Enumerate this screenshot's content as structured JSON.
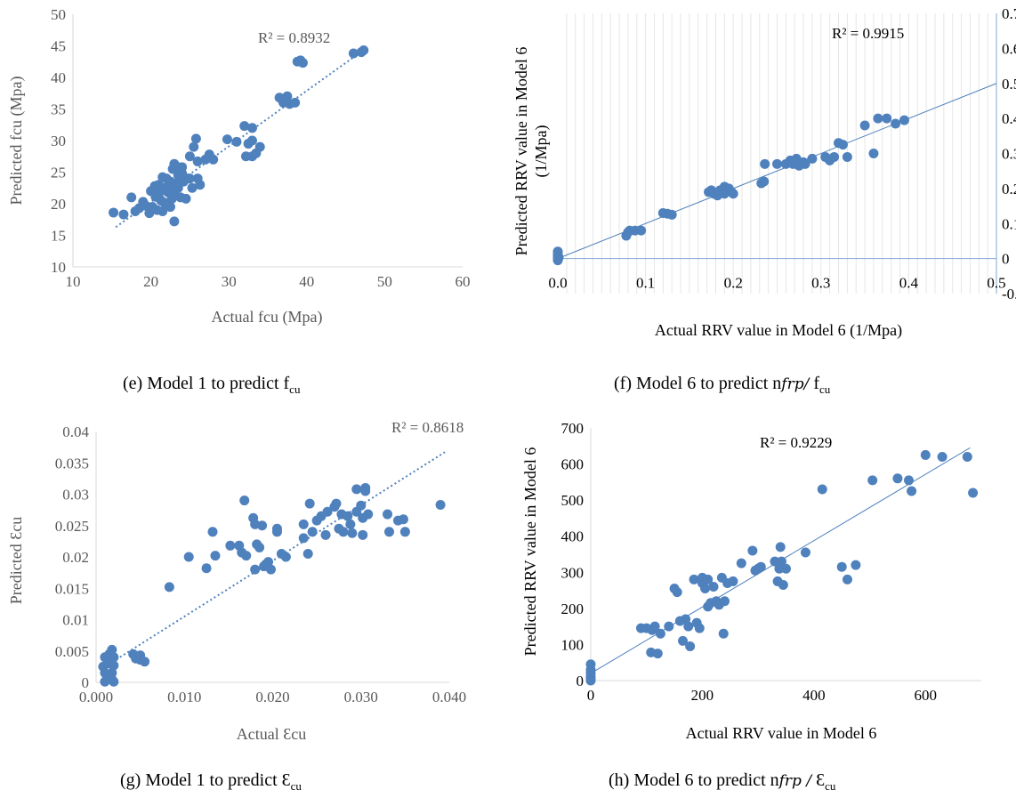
{
  "colors": {
    "point": "#4f81bd",
    "trend": "#4f81bd",
    "axis": "#d9d9d9",
    "text_gray": "#595959"
  },
  "chart_data": [
    {
      "id": "e",
      "type": "scatter",
      "xlabel": "Actual fcu (Mpa)",
      "ylabel": "Predicted fcu (Mpa)",
      "xlim": [
        10,
        60
      ],
      "ylim": [
        10,
        50
      ],
      "xticks": [
        10,
        20,
        30,
        40,
        50,
        60
      ],
      "yticks": [
        10,
        15,
        20,
        25,
        30,
        35,
        40,
        45,
        50
      ],
      "grid": false,
      "trendline": {
        "style": "dotted",
        "from": [
          15.5,
          16.3
        ],
        "to": [
          47.5,
          44.5
        ]
      },
      "r2_label": "R² = 0.8932",
      "caption": {
        "prefix": "(e) Model 1 to predict f",
        "sub": "cu"
      },
      "points": [
        [
          15.2,
          18.6
        ],
        [
          16.5,
          18.3
        ],
        [
          17.5,
          21
        ],
        [
          18,
          18.8
        ],
        [
          18.5,
          19.3
        ],
        [
          19,
          20.3
        ],
        [
          19.3,
          19.7
        ],
        [
          19.8,
          18.5
        ],
        [
          20,
          22
        ],
        [
          20.2,
          19.5
        ],
        [
          20.5,
          22.8
        ],
        [
          20.8,
          19
        ],
        [
          21,
          21.5
        ],
        [
          21,
          23
        ],
        [
          21.3,
          20.5
        ],
        [
          21.5,
          18.8
        ],
        [
          21.8,
          22.5
        ],
        [
          22,
          24
        ],
        [
          22,
          20
        ],
        [
          22.2,
          21.8
        ],
        [
          22.5,
          23.5
        ],
        [
          22.5,
          19.5
        ],
        [
          22.8,
          25.5
        ],
        [
          23,
          22
        ],
        [
          23,
          17.2
        ],
        [
          23.2,
          26
        ],
        [
          23.5,
          24.5
        ],
        [
          23.5,
          22.5
        ],
        [
          23.8,
          21
        ],
        [
          24,
          25.8
        ],
        [
          24.2,
          23.5
        ],
        [
          24.5,
          20.8
        ],
        [
          24.8,
          24
        ],
        [
          25,
          27.5
        ],
        [
          25,
          24
        ],
        [
          25.3,
          22.5
        ],
        [
          25.5,
          29
        ],
        [
          25.8,
          30.3
        ],
        [
          26,
          26.7
        ],
        [
          26,
          24
        ],
        [
          26.3,
          23
        ],
        [
          27,
          27
        ],
        [
          27.5,
          27.8
        ],
        [
          28,
          27
        ],
        [
          29.8,
          30.2
        ],
        [
          31,
          29.8
        ],
        [
          32,
          32.3
        ],
        [
          32.2,
          27.5
        ],
        [
          32.5,
          29.5
        ],
        [
          33,
          27.5
        ],
        [
          33,
          30
        ],
        [
          33,
          32
        ],
        [
          33.5,
          28
        ],
        [
          34,
          29
        ],
        [
          36.5,
          36.8
        ],
        [
          37,
          36
        ],
        [
          37.5,
          37
        ],
        [
          37.8,
          35.8
        ],
        [
          38.5,
          36
        ],
        [
          38.8,
          42.5
        ],
        [
          39.2,
          42.7
        ],
        [
          39.5,
          42.3
        ],
        [
          46,
          43.8
        ],
        [
          47,
          44
        ],
        [
          47.3,
          44.3
        ],
        [
          21.5,
          24.2
        ],
        [
          22.2,
          22.8
        ],
        [
          23,
          26.3
        ],
        [
          24,
          24.8
        ],
        [
          20.6,
          21.1
        ],
        [
          22.7,
          20.8
        ],
        [
          23.3,
          23.2
        ],
        [
          21.7,
          20.2
        ]
      ]
    },
    {
      "id": "f",
      "type": "scatter",
      "xlabel": "Actual RRV value in Model 6 (1/Mpa)",
      "ylabel": "Predicted RRV value in Model 6",
      "ylabel2": "(1/Mpa)",
      "xlim": [
        0,
        0.5
      ],
      "ylim": [
        -0.1,
        0.7
      ],
      "xtick_labels": [
        "0.0",
        "0.1",
        "0.2",
        "0.3",
        "0.4",
        "0.5"
      ],
      "yticks": [
        -0.1,
        0,
        0.1,
        0.2,
        0.3,
        0.4,
        0.5,
        0.6,
        0.7
      ],
      "ytick_labels": [
        "-0.1",
        "0",
        "0.1",
        "0.2",
        "0.3",
        "0.4",
        "0.5",
        "0.6",
        "0.7"
      ],
      "grid": true,
      "trendline": {
        "style": "solid",
        "from": [
          0,
          0.0
        ],
        "to": [
          0.5,
          0.5
        ]
      },
      "r2_label": "R² = 0.9915",
      "caption": {
        "prefix": "(f) Model 6 to predict n",
        "italic": "frp/",
        "mid": " f",
        "sub": "cu"
      },
      "points": [
        [
          0,
          0
        ],
        [
          0,
          0.005
        ],
        [
          0,
          0.01
        ],
        [
          0,
          0.015
        ],
        [
          0,
          0.02
        ],
        [
          0,
          -0.005
        ],
        [
          0.001,
          0.003
        ],
        [
          0.078,
          0.065
        ],
        [
          0.08,
          0.075
        ],
        [
          0.082,
          0.08
        ],
        [
          0.088,
          0.08
        ],
        [
          0.095,
          0.08
        ],
        [
          0.12,
          0.13
        ],
        [
          0.125,
          0.128
        ],
        [
          0.13,
          0.125
        ],
        [
          0.172,
          0.19
        ],
        [
          0.175,
          0.195
        ],
        [
          0.178,
          0.185
        ],
        [
          0.182,
          0.18
        ],
        [
          0.185,
          0.195
        ],
        [
          0.19,
          0.205
        ],
        [
          0.19,
          0.185
        ],
        [
          0.195,
          0.2
        ],
        [
          0.198,
          0.19
        ],
        [
          0.2,
          0.185
        ],
        [
          0.232,
          0.215
        ],
        [
          0.235,
          0.22
        ],
        [
          0.236,
          0.27
        ],
        [
          0.25,
          0.27
        ],
        [
          0.26,
          0.27
        ],
        [
          0.265,
          0.28
        ],
        [
          0.268,
          0.27
        ],
        [
          0.272,
          0.285
        ],
        [
          0.275,
          0.265
        ],
        [
          0.28,
          0.275
        ],
        [
          0.282,
          0.27
        ],
        [
          0.29,
          0.285
        ],
        [
          0.305,
          0.29
        ],
        [
          0.31,
          0.28
        ],
        [
          0.315,
          0.29
        ],
        [
          0.32,
          0.33
        ],
        [
          0.325,
          0.325
        ],
        [
          0.33,
          0.29
        ],
        [
          0.35,
          0.38
        ],
        [
          0.36,
          0.3
        ],
        [
          0.365,
          0.4
        ],
        [
          0.375,
          0.4
        ],
        [
          0.385,
          0.385
        ],
        [
          0.395,
          0.395
        ]
      ]
    },
    {
      "id": "g",
      "type": "scatter",
      "xlabel": "Actual Ɛcu",
      "ylabel": "Predicted Ɛcu",
      "xlim": [
        0,
        0.04
      ],
      "ylim": [
        0,
        0.04
      ],
      "xticks": [
        0,
        0.01,
        0.02,
        0.03,
        0.04
      ],
      "xtick_labels": [
        "0.000",
        "0.010",
        "0.020",
        "0.030",
        "0.040"
      ],
      "yticks": [
        0,
        0.005,
        0.01,
        0.015,
        0.02,
        0.025,
        0.03,
        0.035,
        0.04
      ],
      "ytick_labels": [
        "0",
        "0.005",
        "0.01",
        "0.015",
        "0.02",
        "0.025",
        "0.03",
        "0.035",
        "0.04"
      ],
      "grid": false,
      "trendline": {
        "style": "dotted",
        "from": [
          0.001,
          0.0025
        ],
        "to": [
          0.0395,
          0.0367
        ]
      },
      "r2_label": "R² = 0.8618",
      "caption": {
        "prefix": "(g) Model 1 to predict Ɛ",
        "sub": "cu"
      },
      "points": [
        [
          0.0008,
          0.0025
        ],
        [
          0.001,
          0.004
        ],
        [
          0.001,
          0.0015
        ],
        [
          0.001,
          0.0001
        ],
        [
          0.0015,
          0.0045
        ],
        [
          0.0015,
          0.003
        ],
        [
          0.0018,
          0.0052
        ],
        [
          0.0018,
          0.0005
        ],
        [
          0.0018,
          0.0015
        ],
        [
          0.002,
          0.0001
        ],
        [
          0.002,
          0.0027
        ],
        [
          0.002,
          0.004
        ],
        [
          0.0042,
          0.0045
        ],
        [
          0.0045,
          0.0038
        ],
        [
          0.005,
          0.0043
        ],
        [
          0.005,
          0.0036
        ],
        [
          0.0055,
          0.0033
        ],
        [
          0.0083,
          0.0152
        ],
        [
          0.0105,
          0.02
        ],
        [
          0.0125,
          0.0182
        ],
        [
          0.0132,
          0.024
        ],
        [
          0.0135,
          0.0202
        ],
        [
          0.0152,
          0.0218
        ],
        [
          0.0162,
          0.0218
        ],
        [
          0.0165,
          0.0207
        ],
        [
          0.0168,
          0.029
        ],
        [
          0.017,
          0.0202
        ],
        [
          0.0178,
          0.0262
        ],
        [
          0.018,
          0.018
        ],
        [
          0.018,
          0.0252
        ],
        [
          0.0182,
          0.022
        ],
        [
          0.0185,
          0.0215
        ],
        [
          0.0188,
          0.025
        ],
        [
          0.019,
          0.0185
        ],
        [
          0.0192,
          0.0188
        ],
        [
          0.0195,
          0.0192
        ],
        [
          0.0198,
          0.018
        ],
        [
          0.0205,
          0.0245
        ],
        [
          0.0205,
          0.024
        ],
        [
          0.021,
          0.0205
        ],
        [
          0.0215,
          0.02
        ],
        [
          0.0235,
          0.0252
        ],
        [
          0.0235,
          0.023
        ],
        [
          0.024,
          0.0205
        ],
        [
          0.0242,
          0.0285
        ],
        [
          0.0245,
          0.024
        ],
        [
          0.025,
          0.0258
        ],
        [
          0.0255,
          0.0265
        ],
        [
          0.026,
          0.0235
        ],
        [
          0.0262,
          0.0272
        ],
        [
          0.027,
          0.028
        ],
        [
          0.0272,
          0.0285
        ],
        [
          0.0275,
          0.0245
        ],
        [
          0.0278,
          0.0268
        ],
        [
          0.028,
          0.024
        ],
        [
          0.0285,
          0.0265
        ],
        [
          0.0288,
          0.0252
        ],
        [
          0.029,
          0.0238
        ],
        [
          0.0295,
          0.0308
        ],
        [
          0.0295,
          0.0272
        ],
        [
          0.03,
          0.0282
        ],
        [
          0.0302,
          0.0262
        ],
        [
          0.0302,
          0.0235
        ],
        [
          0.0305,
          0.031
        ],
        [
          0.0305,
          0.0305
        ],
        [
          0.0308,
          0.0268
        ],
        [
          0.033,
          0.0268
        ],
        [
          0.0332,
          0.024
        ],
        [
          0.0342,
          0.0258
        ],
        [
          0.0348,
          0.026
        ],
        [
          0.035,
          0.024
        ],
        [
          0.039,
          0.0283
        ]
      ]
    },
    {
      "id": "h",
      "type": "scatter",
      "xlabel": "Actual RRV value in Model 6",
      "ylabel": "Predicted RRV value in Model 6",
      "xlim": [
        0,
        700
      ],
      "ylim": [
        0,
        700
      ],
      "xticks": [
        0,
        200,
        400,
        600
      ],
      "yticks": [
        0,
        100,
        200,
        300,
        400,
        500,
        600,
        700
      ],
      "grid": false,
      "trendline": {
        "style": "solid",
        "from": [
          0,
          20
        ],
        "to": [
          680,
          645
        ]
      },
      "r2_label": "R² = 0.9229",
      "caption": {
        "prefix": "(h) Model 6 to predict n",
        "italic": "frp /",
        "mid": " Ɛ",
        "sub": "cu"
      },
      "points": [
        [
          0,
          0
        ],
        [
          0,
          10
        ],
        [
          0,
          20
        ],
        [
          0,
          30
        ],
        [
          0,
          45
        ],
        [
          0,
          5
        ],
        [
          90,
          145
        ],
        [
          100,
          145
        ],
        [
          108,
          78
        ],
        [
          110,
          140
        ],
        [
          115,
          150
        ],
        [
          120,
          75
        ],
        [
          125,
          130
        ],
        [
          140,
          150
        ],
        [
          150,
          255
        ],
        [
          155,
          245
        ],
        [
          160,
          165
        ],
        [
          165,
          110
        ],
        [
          170,
          170
        ],
        [
          175,
          150
        ],
        [
          178,
          95
        ],
        [
          185,
          280
        ],
        [
          190,
          160
        ],
        [
          195,
          145
        ],
        [
          200,
          285
        ],
        [
          200,
          270
        ],
        [
          205,
          255
        ],
        [
          210,
          280
        ],
        [
          210,
          205
        ],
        [
          215,
          215
        ],
        [
          220,
          260
        ],
        [
          225,
          220
        ],
        [
          230,
          210
        ],
        [
          235,
          285
        ],
        [
          238,
          130
        ],
        [
          240,
          220
        ],
        [
          245,
          270
        ],
        [
          255,
          275
        ],
        [
          270,
          325
        ],
        [
          290,
          360
        ],
        [
          295,
          305
        ],
        [
          300,
          310
        ],
        [
          305,
          315
        ],
        [
          330,
          330
        ],
        [
          335,
          275
        ],
        [
          338,
          310
        ],
        [
          340,
          370
        ],
        [
          342,
          330
        ],
        [
          345,
          265
        ],
        [
          350,
          310
        ],
        [
          385,
          355
        ],
        [
          415,
          530
        ],
        [
          450,
          315
        ],
        [
          460,
          280
        ],
        [
          475,
          320
        ],
        [
          505,
          555
        ],
        [
          550,
          560
        ],
        [
          570,
          555
        ],
        [
          575,
          525
        ],
        [
          600,
          625
        ],
        [
          630,
          620
        ],
        [
          675,
          620
        ],
        [
          685,
          520
        ]
      ]
    }
  ]
}
